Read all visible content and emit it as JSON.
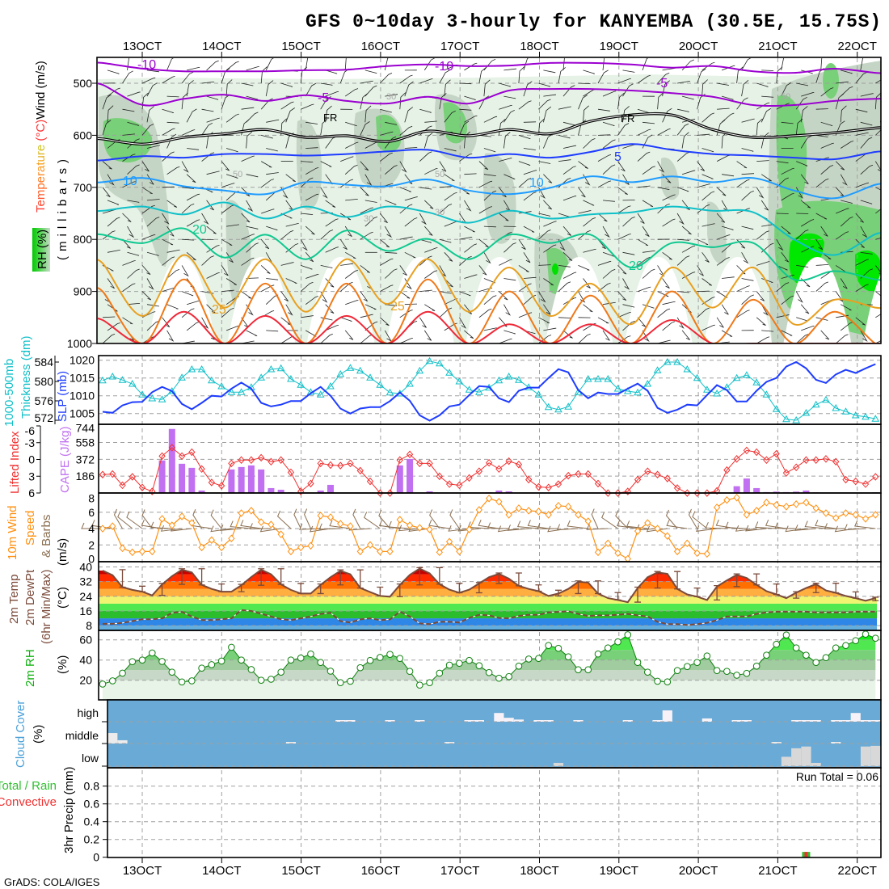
{
  "title": "GFS 0~10day 3-hourly for KANYEMBA (30.5E, 15.75S)",
  "footer": "GrADS: COLA/IGES",
  "chart_data": {
    "type": "meteogram",
    "time_axis": {
      "labels": [
        "13OCT",
        "14OCT",
        "15OCT",
        "16OCT",
        "17OCT",
        "18OCT",
        "19OCT",
        "20OCT",
        "21OCT",
        "22OCT"
      ],
      "step_hours": 3,
      "points": 79
    },
    "upper_air": {
      "ylabel_parts": [
        "Temperature",
        " (°C)",
        "Wind (m/s)"
      ],
      "rh_label": "RH (%)",
      "units_label": "(millibars)",
      "pressure_ticks": [
        "500",
        "600",
        "700",
        "800",
        "900",
        "1000"
      ],
      "contours": [
        {
          "level": -10,
          "color": "#9b00d0",
          "pressure": [
            461,
            472,
            477,
            477,
            477,
            475,
            474,
            467,
            464,
            467,
            466,
            461,
            461,
            464,
            470,
            467,
            477,
            480,
            472,
            480
          ]
        },
        {
          "level": -5,
          "color": "#9b00d0",
          "pressure": [
            503,
            542,
            530,
            522,
            534,
            523,
            534,
            539,
            526,
            539,
            514,
            511,
            511,
            514,
            519,
            526,
            542,
            542,
            534,
            530
          ]
        },
        {
          "level": 0,
          "color": "#000000",
          "pressure": [
            607,
            617,
            604,
            597,
            589,
            604,
            601,
            612,
            592,
            601,
            589,
            597,
            573,
            561,
            561,
            589,
            604,
            601,
            595,
            586
          ]
        },
        {
          "level": 5,
          "color": "#1e3cff",
          "pressure": [
            648,
            640,
            643,
            636,
            636,
            639,
            636,
            631,
            628,
            643,
            636,
            643,
            632,
            617,
            628,
            636,
            639,
            643,
            646,
            632
          ]
        },
        {
          "level": 10,
          "color": "#1e9bff",
          "pressure": [
            690,
            682,
            698,
            706,
            713,
            690,
            695,
            698,
            685,
            706,
            713,
            701,
            679,
            690,
            679,
            690,
            682,
            706,
            721,
            695
          ]
        },
        {
          "level": 15,
          "color": "#10c0c8",
          "pressure": [
            745,
            737,
            752,
            729,
            760,
            737,
            757,
            737,
            748,
            768,
            745,
            760,
            752,
            748,
            737,
            745,
            748,
            800,
            830,
            790
          ]
        },
        {
          "level": 20,
          "color": "#10c890",
          "pressure": [
            791,
            807,
            779,
            835,
            791,
            838,
            783,
            822,
            799,
            838,
            791,
            807,
            791,
            854,
            807,
            815,
            807,
            877,
            861,
            877
          ]
        },
        {
          "level": 25,
          "color": "#e8a020",
          "pressure": [
            846,
            947,
            830,
            931,
            838,
            939,
            838,
            924,
            838,
            939,
            854,
            947,
            885,
            963,
            854,
            931,
            854,
            963,
            916,
            931
          ]
        },
        {
          "level": 30,
          "color": "#f07818",
          "pressure": [
            900,
            1000,
            877,
            1000,
            885,
            1000,
            885,
            1000,
            877,
            1000,
            900,
            1000,
            908,
            1000,
            900,
            1000,
            916,
            1000,
            939,
            1000
          ]
        },
        {
          "level": 35,
          "color": "#f02838",
          "pressure": [
            955,
            1000,
            939,
            1000,
            947,
            1000,
            947,
            1000,
            939,
            1000,
            963,
            1000,
            963,
            1000,
            955,
            1000,
            1000,
            1000,
            1000,
            1000
          ]
        }
      ],
      "contour_labels": [
        "-10",
        "-10",
        "-5",
        "-5",
        "FR",
        "FR",
        "5",
        "10",
        "10",
        "20",
        "20",
        "25",
        "25"
      ],
      "rh_labels": [
        "30",
        "50",
        "30",
        "50",
        "30",
        "50"
      ]
    },
    "slp": {
      "label": "SLP (mb)",
      "color": "#1e3cff",
      "ticks": [
        "1020",
        "1015",
        "1010",
        "1005"
      ],
      "values": [
        1005.5,
        1005.2,
        1007.3,
        1008.2,
        1008.3,
        1011,
        1012.5,
        1011.3,
        1007.7,
        1006.2,
        1008,
        1010,
        1009.8,
        1012,
        1013.7,
        1012,
        1008,
        1007,
        1007.5,
        1008.5,
        1008.5,
        1010.7,
        1012.5,
        1010,
        1006.4,
        1005,
        1006.4,
        1006.8,
        1006.8,
        1008.5,
        1010.9,
        1008.6,
        1004.5,
        1003,
        1004.5,
        1007,
        1007.5,
        1010.2,
        1012.7,
        1012.5,
        1009.3,
        1008.2,
        1011.4,
        1012.3,
        1012.3,
        1015,
        1017.5,
        1016.6,
        1011.6,
        1009.3,
        1010.9,
        1010.5,
        1010.5,
        1012,
        1013.4,
        1011.4,
        1006.6,
        1005.2,
        1006.1,
        1007.5,
        1007.3,
        1010.2,
        1013,
        1011.6,
        1008.4,
        1008.4,
        1011.4,
        1013.9,
        1015,
        1018.2,
        1019.5,
        1017.7,
        1014.5,
        1013.6,
        1016,
        1017.3,
        1016.4,
        1017.7,
        1018.9
      ]
    },
    "thickness": {
      "label1": "1000-500mb",
      "label2": "Thickness (dm)",
      "color": "#10c0c8",
      "ticks": [
        "584",
        "580",
        "576",
        "572"
      ],
      "values": [
        580.2,
        581,
        580.3,
        579.5,
        577.3,
        576.5,
        576.3,
        578,
        580.8,
        582.5,
        582.5,
        580.2,
        579,
        577.8,
        577.8,
        578.8,
        580.8,
        582.5,
        582.7,
        580.5,
        579.3,
        577.8,
        577.3,
        579,
        581.5,
        582.8,
        582.2,
        580.8,
        579.3,
        577.7,
        577.5,
        579.5,
        582.2,
        584.2,
        583.7,
        581.8,
        580,
        578.3,
        577.8,
        578.7,
        580.2,
        581,
        580.3,
        578.8,
        577.3,
        574.7,
        574.2,
        574.8,
        577.8,
        580.5,
        580.5,
        580.5,
        578.5,
        578,
        577.7,
        579.5,
        582.3,
        584,
        584,
        582.5,
        580.7,
        578.3,
        577.5,
        578.8,
        580.7,
        581.3,
        579.8,
        577.3,
        574.3,
        572.2,
        572,
        573.5,
        575.2,
        576.2,
        574.5,
        573.8,
        573,
        572.7,
        572.3
      ]
    },
    "lifted_index": {
      "label": "Lifted Index",
      "color": "#f03030",
      "ticks": [
        "-6",
        "-3",
        "0",
        "3",
        "6"
      ],
      "values": [
        2.7,
        2.6,
        4.6,
        3.1,
        5,
        5.7,
        -0.6,
        -2.1,
        -0.6,
        -1.3,
        1.7,
        4.1,
        4.7,
        0.7,
        0.1,
        0.1,
        -0.3,
        0.4,
        0.1,
        2.3,
        5.7,
        4.3,
        0.7,
        1,
        1.1,
        0.7,
        2,
        3.9,
        6,
        6,
        0.1,
        -0.9,
        0.7,
        0.7,
        3,
        4.4,
        4.6,
        3.3,
        2.1,
        0.6,
        1.7,
        0.3,
        0.9,
        3.6,
        4.9,
        5,
        4.4,
        2.9,
        2.6,
        2.6,
        4.3,
        6,
        6,
        5.7,
        3.6,
        2.1,
        2.7,
        3.4,
        5.1,
        6,
        6,
        6,
        5.6,
        1.9,
        -0.1,
        -1.6,
        -1.3,
        0.1,
        -1,
        2.4,
        1.4,
        0.1,
        0.1,
        -0.1,
        0.4,
        3.6,
        3.9,
        4.4,
        3.1
      ]
    },
    "cape": {
      "label": "CAPE (J/kg)",
      "color": "#c070f0",
      "ticks": [
        "744",
        "558",
        "372",
        "186"
      ],
      "values": [
        0,
        0,
        0,
        0,
        0,
        0,
        360,
        708,
        323,
        278,
        27,
        0,
        0,
        260,
        287,
        305,
        260,
        54,
        36,
        9,
        0,
        0,
        27,
        90,
        0,
        0,
        0,
        0,
        0,
        0,
        305,
        376,
        0,
        18,
        0,
        0,
        0,
        0,
        0,
        8,
        27,
        18,
        0,
        0,
        0,
        0,
        0,
        0,
        0,
        0,
        0,
        0,
        0,
        0,
        0,
        0,
        0,
        0,
        0,
        0,
        0,
        0,
        0,
        0,
        75,
        160,
        54,
        10,
        15,
        10,
        15,
        27,
        8,
        0,
        0,
        0,
        0,
        0,
        8
      ]
    },
    "wind_10m": {
      "label1": "10m Wind",
      "label2": "Speed",
      "label3": "& Barbs",
      "units": "(m/s)",
      "color": "#ff9010",
      "ticks": [
        "8",
        "6",
        "4",
        "2",
        "0"
      ],
      "values": [
        4,
        4.3,
        1.6,
        1.1,
        1.2,
        1.2,
        5.2,
        4.4,
        5.5,
        4.7,
        1.7,
        2.6,
        1.7,
        2.8,
        5.9,
        6.2,
        4.8,
        4.5,
        3.3,
        1.2,
        1.7,
        1.9,
        5.6,
        5.4,
        4.6,
        4.3,
        1.2,
        2,
        1.2,
        1.2,
        5.1,
        4.4,
        4.1,
        3.9,
        1.1,
        2.4,
        1.2,
        3.9,
        6.3,
        7.7,
        7.3,
        5.7,
        6.5,
        6.2,
        6.1,
        5.7,
        6.8,
        6.7,
        5.7,
        4.9,
        1.1,
        2.2,
        1,
        0.3,
        3.7,
        4.7,
        4,
        3.1,
        1.2,
        2.2,
        1,
        0.9,
        6.6,
        7.5,
        7.8,
        5.7,
        6.2,
        7.2,
        6.9,
        6.7,
        7,
        7.2,
        6.5,
        5.9,
        5.3,
        5.9,
        5.7,
        5.2,
        5.7
      ]
    },
    "temp_2m": {
      "label1": "2m Temp",
      "label2": "2m DewPt",
      "label3": "(6hr Min/Max)",
      "units": "(°C)",
      "ticks": [
        "40",
        "32",
        "24",
        "16",
        "8"
      ],
      "temperature": [
        38,
        35.5,
        29,
        27.5,
        26.5,
        24.5,
        30.5,
        35,
        38.5,
        37,
        30.2,
        28,
        26.5,
        26.5,
        30,
        34.5,
        38.5,
        36,
        30.5,
        27.5,
        25.5,
        25.5,
        30.2,
        34.4,
        37.9,
        36,
        28.5,
        26.3,
        24.2,
        23.8,
        30.2,
        35.7,
        39.1,
        36.5,
        30.6,
        27.6,
        25.9,
        27.6,
        31,
        34.4,
        36.2,
        33.6,
        29.7,
        28,
        26.8,
        24.2,
        25.5,
        28,
        31.9,
        31.5,
        25.5,
        23,
        22,
        20.8,
        28.5,
        34.4,
        37,
        36.2,
        28,
        25,
        23.8,
        22,
        29.3,
        32.7,
        35.7,
        34,
        30.2,
        26.8,
        25,
        23,
        26,
        28.5,
        30.6,
        27.2,
        25.9,
        24.2,
        23,
        21.6,
        23
      ],
      "dewpoint": [
        9,
        9,
        9.5,
        10.5,
        11.5,
        11.5,
        12,
        15,
        15.5,
        13,
        11,
        11,
        11.5,
        12,
        16.5,
        16,
        14.5,
        13,
        11.5,
        11,
        12,
        13,
        14.4,
        15,
        10.5,
        9.7,
        11.4,
        12,
        11,
        11.4,
        15.6,
        13,
        9.2,
        8.8,
        10.1,
        10.1,
        9.7,
        12.2,
        13.9,
        13.6,
        12.2,
        12,
        13.3,
        13.9,
        13.9,
        15.2,
        15.5,
        15.8,
        14.4,
        13.3,
        13.6,
        13.6,
        13.9,
        14.4,
        13.6,
        13,
        10.1,
        8.8,
        8.8,
        8.4,
        8.8,
        9.5,
        11,
        13,
        13,
        13,
        14.4,
        15.2,
        15.6,
        15.6,
        15.6,
        15.6,
        15.2,
        15.2,
        15.2,
        15.2,
        15.6,
        15.6,
        15.6
      ]
    },
    "rh_2m": {
      "label": "2m RH",
      "units": "(%)",
      "ticks": [
        "60",
        "40",
        "20"
      ],
      "values": [
        16.2,
        19.4,
        27,
        38.4,
        40,
        47,
        38.6,
        28,
        18.3,
        19.4,
        32,
        35.4,
        39,
        52.6,
        40,
        30.6,
        20,
        21,
        28,
        40,
        42,
        46,
        37.6,
        29,
        17.6,
        19,
        32.4,
        39.6,
        42.6,
        45.6,
        41.6,
        28.8,
        15.2,
        17.6,
        27,
        35,
        36.8,
        39.6,
        34.4,
        27.6,
        22,
        23.6,
        34,
        41,
        41.6,
        54.4,
        51.6,
        43.2,
        30.4,
        30.4,
        46,
        52,
        58,
        65,
        37.6,
        28,
        19,
        18.4,
        29.6,
        33.6,
        37.6,
        44,
        29.6,
        28.8,
        25,
        26.8,
        34,
        44.8,
        55.6,
        64.8,
        52,
        44.8,
        37.6,
        42.4,
        52,
        54.4,
        59.2,
        65.6,
        61.6
      ]
    },
    "cloud_cover": {
      "label": "Cloud Cover",
      "units": "(%)",
      "rows": [
        "high",
        "middle",
        "low"
      ],
      "high": {
        "24": 5,
        "25": 5,
        "29": 5,
        "32": 5,
        "37": 5,
        "38": 5,
        "40": 40,
        "41": 18,
        "42": 10,
        "44": 5,
        "45": 5,
        "48": 5,
        "53": 5,
        "56": 5,
        "57": 52,
        "61": 15,
        "64": 5,
        "65": 5,
        "70": 5,
        "71": 5,
        "72": 5,
        "74": 5,
        "75": 5,
        "76": 40,
        "77": 5,
        "78": 5
      },
      "middle": {
        "1": 48,
        "2": 15,
        "19": 7,
        "35": 7,
        "68": 7,
        "74": 7
      },
      "low": {
        "46": 15,
        "69": 43,
        "70": 82,
        "71": 90,
        "72": 15,
        "77": 90,
        "78": 93
      }
    },
    "precip_3hr": {
      "label_total": "Total / Rain",
      "label_conv": "Convective",
      "ylabel": "3hr Precip (mm)",
      "ticks": [
        "0.8",
        "0.6",
        "0.4",
        "0.2",
        "0"
      ],
      "total": {
        "71": 0.06
      },
      "convective": {
        "71": 0.06
      },
      "run_total": "Run Total = 0.06"
    }
  }
}
